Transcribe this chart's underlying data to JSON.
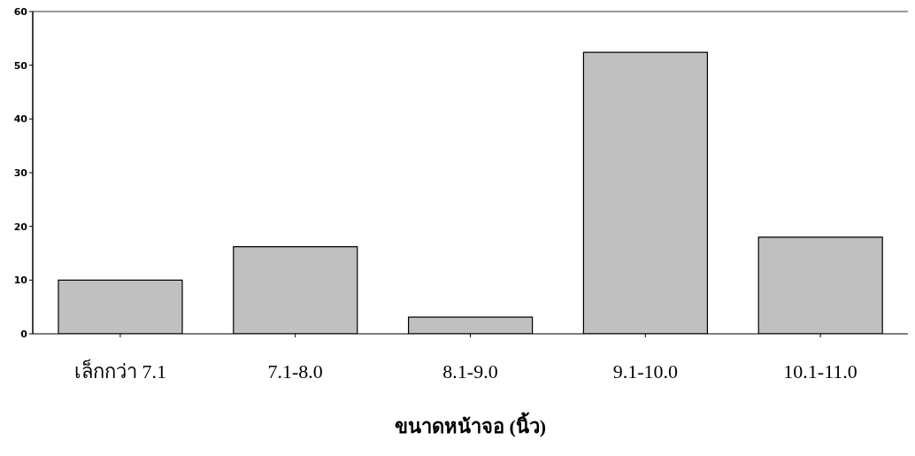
{
  "chart_data": {
    "type": "bar",
    "xlabel": "ขนาดหน้าจอ (นิ้ว)",
    "categories": [
      "เล็กกว่า 7.1",
      "7.1-8.0",
      "8.1-9.0",
      "9.1-10.0",
      "10.1-11.0"
    ],
    "values": [
      10,
      16.2,
      3.1,
      52.4,
      18.0
    ],
    "color": "#c0c0c0",
    "ylim": [
      0,
      60
    ],
    "yticks": [
      0,
      10,
      20,
      30,
      40,
      50,
      60
    ],
    "grid": false
  }
}
